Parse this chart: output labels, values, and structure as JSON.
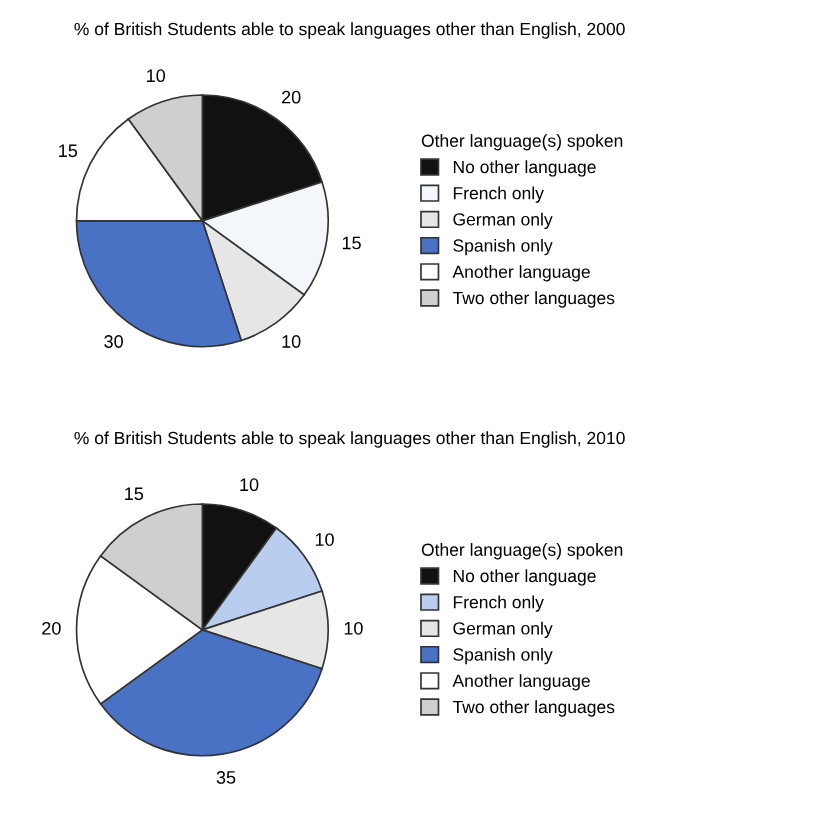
{
  "chart_data": [
    {
      "type": "pie",
      "title": "% of British Students able to speak languages other than English, 2000",
      "legend_title": "Other language(s) spoken",
      "legend": "right",
      "data_labels": true,
      "categories": [
        "No other language",
        "French only",
        "German only",
        "Spanish only",
        "Another language",
        "Two other languages"
      ],
      "values": [
        20,
        15,
        10,
        30,
        15,
        10
      ],
      "colors": [
        "#111111",
        "#f3f6fb",
        "#e6e6e6",
        "#4a72c4",
        "#ffffff",
        "#cfcfcf"
      ]
    },
    {
      "type": "pie",
      "title": "% of British Students able to speak languages other than English, 2010",
      "legend_title": "Other language(s) spoken",
      "legend": "right",
      "data_labels": true,
      "categories": [
        "No other language",
        "French only",
        "German only",
        "Spanish only",
        "Another language",
        "Two other languages"
      ],
      "values": [
        10,
        10,
        10,
        35,
        20,
        15
      ],
      "colors": [
        "#111111",
        "#b9cdee",
        "#e6e6e6",
        "#4a72c4",
        "#ffffff",
        "#cfcfcf"
      ]
    }
  ]
}
